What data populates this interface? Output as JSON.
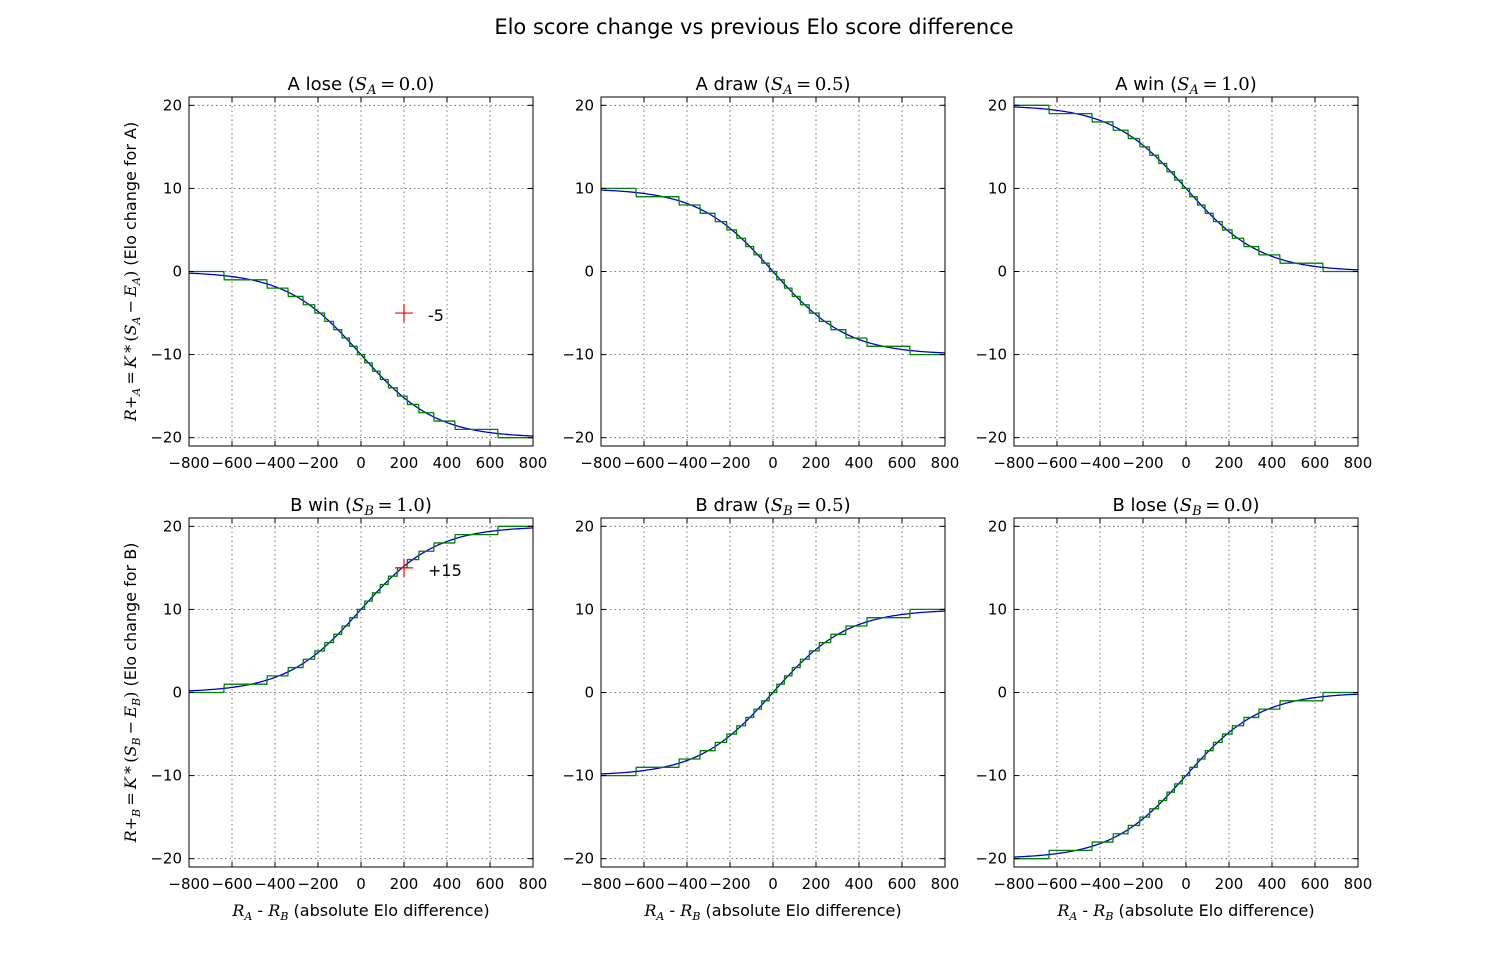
{
  "figure": {
    "title": "Elo score change vs previous Elo score difference",
    "ylabel_top": "R+_A = K * (S_A − E_A) (Elo change for A)",
    "ylabel_bottom": "R+_B = K * (S_B − E_B) (Elo change for B)",
    "xlabel": "R_A - R_B (absolute Elo difference)"
  },
  "colors": {
    "curve": "#0000cc",
    "step": "#008000",
    "marker": "#ff0000",
    "axes": "#000000",
    "grid": "#555555"
  },
  "chart_data": [
    {
      "type": "line",
      "title": "A lose (S_A = 0.0)",
      "K": 20,
      "S": 0.0,
      "perspective": "A",
      "xlim": [
        -800,
        800
      ],
      "ylim": [
        -21,
        21
      ],
      "xticks": [
        -800,
        -600,
        -400,
        -200,
        0,
        200,
        400,
        600,
        800
      ],
      "yticks": [
        -20,
        -10,
        0,
        10,
        20
      ],
      "grid": true,
      "series": [],
      "annotation": {
        "x": 200,
        "y": -5,
        "label": "-5"
      }
    },
    {
      "type": "line",
      "title": "A draw (S_A = 0.5)",
      "K": 20,
      "S": 0.5,
      "perspective": "A",
      "xlim": [
        -800,
        800
      ],
      "ylim": [
        -21,
        21
      ],
      "xticks": [
        -800,
        -600,
        -400,
        -200,
        0,
        200,
        400,
        600,
        800
      ],
      "yticks": [
        -20,
        -10,
        0,
        10,
        20
      ],
      "grid": true,
      "series": []
    },
    {
      "type": "line",
      "title": "A win (S_A = 1.0)",
      "K": 20,
      "S": 1.0,
      "perspective": "A",
      "xlim": [
        -800,
        800
      ],
      "ylim": [
        -21,
        21
      ],
      "xticks": [
        -800,
        -600,
        -400,
        -200,
        0,
        200,
        400,
        600,
        800
      ],
      "yticks": [
        -20,
        -10,
        0,
        10,
        20
      ],
      "grid": true,
      "series": []
    },
    {
      "type": "line",
      "title": "B win (S_B = 1.0)",
      "K": 20,
      "S": 1.0,
      "perspective": "B",
      "xlim": [
        -800,
        800
      ],
      "ylim": [
        -21,
        21
      ],
      "xticks": [
        -800,
        -600,
        -400,
        -200,
        0,
        200,
        400,
        600,
        800
      ],
      "yticks": [
        -20,
        -10,
        0,
        10,
        20
      ],
      "grid": true,
      "series": [],
      "annotation": {
        "x": 200,
        "y": 15,
        "label": "+15"
      }
    },
    {
      "type": "line",
      "title": "B draw (S_B = 0.5)",
      "K": 20,
      "S": 0.5,
      "perspective": "B",
      "xlim": [
        -800,
        800
      ],
      "ylim": [
        -21,
        21
      ],
      "xticks": [
        -800,
        -600,
        -400,
        -200,
        0,
        200,
        400,
        600,
        800
      ],
      "yticks": [
        -20,
        -10,
        0,
        10,
        20
      ],
      "grid": true,
      "series": []
    },
    {
      "type": "line",
      "title": "B lose (S_B = 0.0)",
      "K": 20,
      "S": 0.0,
      "perspective": "B",
      "xlim": [
        -800,
        800
      ],
      "ylim": [
        -21,
        21
      ],
      "xticks": [
        -800,
        -600,
        -400,
        -200,
        0,
        200,
        400,
        600,
        800
      ],
      "yticks": [
        -20,
        -10,
        0,
        10,
        20
      ],
      "grid": true,
      "series": []
    }
  ]
}
